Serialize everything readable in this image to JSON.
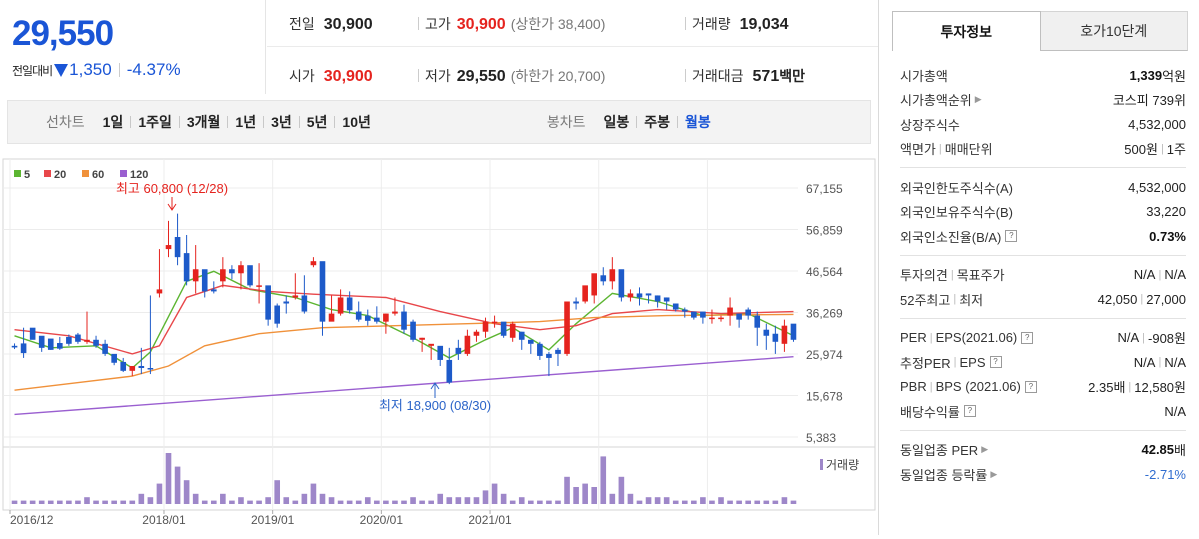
{
  "price": {
    "current": "29,550",
    "diff_label": "전일대비",
    "diff_value": "1,350",
    "diff_rate": "-4.37%"
  },
  "quote": {
    "prev_label": "전일",
    "prev_value": "30,900",
    "high_label": "고가",
    "high_value": "30,900",
    "upper_limit": "(상한가 38,400)",
    "volume_label": "거래량",
    "volume_value": "19,034",
    "open_label": "시가",
    "open_value": "30,900",
    "low_label": "저가",
    "low_value": "29,550",
    "lower_limit": "(하한가 20,700)",
    "amount_label": "거래대금",
    "amount_value": "571",
    "amount_unit": "백만"
  },
  "period_bar": {
    "line_head": "선차트",
    "line_items": [
      "1일",
      "1주일",
      "3개월",
      "1년",
      "3년",
      "5년",
      "10년"
    ],
    "candle_head": "봉차트",
    "candle_items": [
      "일봉",
      "주봉",
      "월봉"
    ],
    "active": "월봉"
  },
  "chart_data": {
    "type": "candlestick",
    "title": "",
    "legend": [
      {
        "name": "5",
        "color": "#5cb531"
      },
      {
        "name": "20",
        "color": "#e8474a"
      },
      {
        "name": "60",
        "color": "#f0913a"
      },
      {
        "name": "120",
        "color": "#9a5fd0"
      }
    ],
    "y_ticks": [
      "67,155",
      "56,859",
      "46,564",
      "36,269",
      "25,974",
      "15,678",
      "5,383"
    ],
    "ylim": [
      5383,
      67155
    ],
    "x_ticks": [
      "2016/12",
      "2018/01",
      "2019/01",
      "2020/01",
      "2021/01"
    ],
    "max_annotation": "최고 60,800 (12/28)",
    "min_annotation": "최저 18,900 (08/30)",
    "volume_label": "거래량",
    "colors": {
      "up": "#e5231e",
      "down": "#1d5ac9",
      "up_vol": "#9e87c9"
    },
    "candles": [
      [
        28000,
        28600,
        27600,
        27200
      ],
      [
        28600,
        32500,
        26200,
        25000
      ],
      [
        32500,
        30500,
        29500,
        30000
      ],
      [
        30500,
        29800,
        27500,
        26500
      ],
      [
        29800,
        28700,
        27000,
        27000
      ],
      [
        28700,
        30200,
        27300,
        27000
      ],
      [
        30200,
        30800,
        28500,
        28000
      ],
      [
        30800,
        31200,
        29000,
        28500
      ],
      [
        29000,
        36500,
        29500,
        28500
      ],
      [
        29500,
        30500,
        28000,
        27500
      ],
      [
        28500,
        29500,
        26000,
        25500
      ],
      [
        26000,
        25500,
        23800,
        23200
      ],
      [
        24000,
        25000,
        21800,
        21500
      ],
      [
        21800,
        22500,
        23000,
        20500
      ],
      [
        23000,
        27500,
        22500,
        21000
      ],
      [
        22500,
        40500,
        22300,
        21000
      ],
      [
        41000,
        52000,
        42000,
        40000
      ],
      [
        52000,
        59000,
        53000,
        50000
      ],
      [
        55000,
        60800,
        50000,
        48000
      ],
      [
        51000,
        55500,
        44000,
        43000
      ],
      [
        44000,
        53000,
        47000,
        41000
      ],
      [
        47000,
        44500,
        41500,
        40000
      ],
      [
        42000,
        44000,
        41500,
        41000
      ],
      [
        44000,
        50000,
        47000,
        42500
      ],
      [
        47000,
        48000,
        46000,
        44500
      ],
      [
        46000,
        49000,
        48000,
        42000
      ],
      [
        48000,
        46000,
        43000,
        42500
      ],
      [
        43000,
        48500,
        43000,
        38500
      ],
      [
        43000,
        38500,
        34500,
        33000
      ],
      [
        38000,
        38500,
        33500,
        32500
      ],
      [
        39000,
        40500,
        38500,
        36000
      ],
      [
        40000,
        46000,
        40500,
        39500
      ],
      [
        40500,
        45500,
        36500,
        36000
      ],
      [
        48000,
        50000,
        49000,
        47500
      ],
      [
        49000,
        40000,
        34000,
        30500
      ],
      [
        34000,
        40500,
        36000,
        35000
      ],
      [
        36000,
        42000,
        40000,
        35500
      ],
      [
        40000,
        41500,
        36800,
        36000
      ],
      [
        36500,
        39000,
        34500,
        34000
      ],
      [
        35500,
        37000,
        34200,
        33000
      ],
      [
        35000,
        37800,
        34000,
        33500
      ],
      [
        34000,
        36000,
        36000,
        31000
      ],
      [
        36000,
        40000,
        36500,
        35500
      ],
      [
        36500,
        38200,
        32000,
        31000
      ],
      [
        34000,
        34500,
        29500,
        29000
      ],
      [
        29500,
        30000,
        30000,
        26500
      ],
      [
        28000,
        28200,
        28500,
        24500
      ],
      [
        28000,
        25500,
        24500,
        23000
      ],
      [
        24500,
        27500,
        18900,
        18500
      ],
      [
        27500,
        29500,
        26000,
        24500
      ],
      [
        26000,
        32000,
        30500,
        25500
      ],
      [
        30500,
        32000,
        31500,
        29000
      ],
      [
        31500,
        35000,
        34000,
        30000
      ],
      [
        34000,
        35500,
        34000,
        32500
      ],
      [
        34000,
        33500,
        30500,
        30000
      ],
      [
        30000,
        34000,
        33500,
        29000
      ],
      [
        31500,
        31500,
        29500,
        27000
      ],
      [
        29500,
        28500,
        28500,
        26000
      ],
      [
        28500,
        29000,
        25500,
        24500
      ],
      [
        26000,
        26500,
        25000,
        20500
      ],
      [
        27000,
        27500,
        26000,
        23000
      ],
      [
        26000,
        39000,
        39000,
        25500
      ],
      [
        39000,
        40000,
        38500,
        37000
      ],
      [
        39000,
        41000,
        43000,
        38500
      ],
      [
        40500,
        45500,
        46000,
        38500
      ],
      [
        45500,
        47500,
        44000,
        43000
      ],
      [
        44000,
        50000,
        47000,
        42000
      ],
      [
        47000,
        43000,
        40000,
        39000
      ],
      [
        40000,
        42000,
        41000,
        39000
      ],
      [
        41000,
        42500,
        40000,
        38000
      ],
      [
        41000,
        41000,
        40500,
        38500
      ],
      [
        40500,
        40500,
        39000,
        37500
      ],
      [
        40000,
        40000,
        39000,
        37000
      ],
      [
        38500,
        38500,
        37000,
        36500
      ],
      [
        37000,
        37500,
        36500,
        35000
      ],
      [
        36500,
        36000,
        35000,
        34500
      ],
      [
        36500,
        36000,
        35000,
        33500
      ],
      [
        35000,
        37000,
        35000,
        33500
      ],
      [
        35000,
        35500,
        35000,
        34000
      ],
      [
        35500,
        40000,
        37500,
        33000
      ],
      [
        36000,
        36000,
        34500,
        32500
      ],
      [
        37000,
        37500,
        35500,
        34500
      ],
      [
        35500,
        36500,
        32500,
        28000
      ],
      [
        32000,
        33500,
        30500,
        27000
      ],
      [
        31000,
        33000,
        29000,
        26000
      ],
      [
        28500,
        34500,
        33000,
        26500
      ],
      [
        33500,
        32500,
        29500,
        29000
      ]
    ],
    "volumes": [
      1,
      1,
      1,
      1,
      1,
      1,
      1,
      1,
      2,
      1,
      1,
      1,
      1,
      1,
      3,
      2,
      6,
      15,
      11,
      7,
      3,
      1,
      1,
      3,
      1,
      2,
      1,
      1,
      2,
      7,
      2,
      1,
      3,
      6,
      3,
      2,
      1,
      1,
      1,
      2,
      1,
      1,
      1,
      1,
      2,
      1,
      1,
      3,
      2,
      2,
      2,
      2,
      4,
      6,
      3,
      1,
      2,
      1,
      1,
      1,
      1,
      8,
      5,
      6,
      5,
      14,
      3,
      8,
      3,
      1,
      2,
      2,
      2,
      1,
      1,
      1,
      2,
      1,
      2,
      1,
      1,
      1,
      1,
      1,
      1,
      2,
      1
    ],
    "ma_lines": [
      {
        "name": "5",
        "color": "#5cb531",
        "points": [
          [
            0,
            30500
          ],
          [
            4,
            27500
          ],
          [
            9,
            28000
          ],
          [
            13,
            22500
          ],
          [
            15,
            26500
          ],
          [
            19,
            44000
          ],
          [
            22,
            46500
          ],
          [
            26,
            42000
          ],
          [
            31,
            40000
          ],
          [
            35,
            37000
          ],
          [
            39,
            35500
          ],
          [
            44,
            30000
          ],
          [
            48,
            25000
          ],
          [
            52,
            29500
          ],
          [
            55,
            32500
          ],
          [
            59,
            27000
          ],
          [
            62,
            33500
          ],
          [
            66,
            41000
          ],
          [
            71,
            39000
          ],
          [
            76,
            35500
          ],
          [
            81,
            36000
          ],
          [
            86,
            30500
          ]
        ]
      },
      {
        "name": "20",
        "color": "#e8474a",
        "points": [
          [
            0,
            32000
          ],
          [
            6,
            30500
          ],
          [
            13,
            26000
          ],
          [
            16,
            28000
          ],
          [
            19,
            40000
          ],
          [
            23,
            43000
          ],
          [
            28,
            41500
          ],
          [
            33,
            40800
          ],
          [
            41,
            40000
          ],
          [
            47,
            36500
          ],
          [
            53,
            33500
          ],
          [
            58,
            32000
          ],
          [
            62,
            33000
          ],
          [
            66,
            36000
          ],
          [
            71,
            37000
          ],
          [
            78,
            36000
          ],
          [
            86,
            36500
          ]
        ]
      },
      {
        "name": "60",
        "color": "#f0913a",
        "points": [
          [
            0,
            17000
          ],
          [
            13,
            20500
          ],
          [
            17,
            23000
          ],
          [
            21,
            28000
          ],
          [
            27,
            31000
          ],
          [
            34,
            32500
          ],
          [
            42,
            33000
          ],
          [
            50,
            33500
          ],
          [
            58,
            34000
          ],
          [
            64,
            35000
          ],
          [
            72,
            35500
          ],
          [
            86,
            35800
          ]
        ]
      },
      {
        "name": "120",
        "color": "#9a5fd0",
        "points": [
          [
            0,
            11000
          ],
          [
            86,
            25300
          ]
        ]
      }
    ]
  },
  "tabs": {
    "info": "투자정보",
    "hoga": "호가10단계"
  },
  "info": {
    "mcap_label": "시가총액",
    "mcap_value": "1,339",
    "mcap_unit": "억원",
    "mcap_rank_label": "시가총액순위",
    "mcap_rank_value": "코스피 739위",
    "shares_label": "상장주식수",
    "shares_value": "4,532,000",
    "par_label": "액면가",
    "unit_label": "매매단위",
    "par_value": "500원",
    "unit_value": "1주",
    "foreign_limit_label": "외국인한도주식수(A)",
    "foreign_limit_value": "4,532,000",
    "foreign_hold_label": "외국인보유주식수(B)",
    "foreign_hold_value": "33,220",
    "foreign_rate_label": "외국인소진율(B/A)",
    "foreign_rate_value": "0.73%",
    "opinion_label": "투자의견",
    "target_label": "목표주가",
    "opinion_value": "N/A",
    "target_value": "N/A",
    "w52_high_label": "52주최고",
    "w52_low_label": "최저",
    "w52_high_value": "42,050",
    "w52_low_value": "27,000",
    "per_label": "PER",
    "eps_label": "EPS(2021.06)",
    "per_value": "N/A",
    "eps_value": "-908원",
    "est_per_label": "추정PER",
    "est_eps_label": "EPS",
    "est_per_value": "N/A",
    "est_eps_value": "N/A",
    "pbr_label": "PBR",
    "bps_label": "BPS (2021.06)",
    "pbr_value": "2.35배",
    "bps_value": "12,580원",
    "div_label": "배당수익률",
    "div_value": "N/A",
    "ind_per_label": "동일업종 PER",
    "ind_per_value": "42.85",
    "ind_per_unit": "배",
    "ind_rate_label": "동일업종 등락률",
    "ind_rate_value": "-2.71%"
  }
}
